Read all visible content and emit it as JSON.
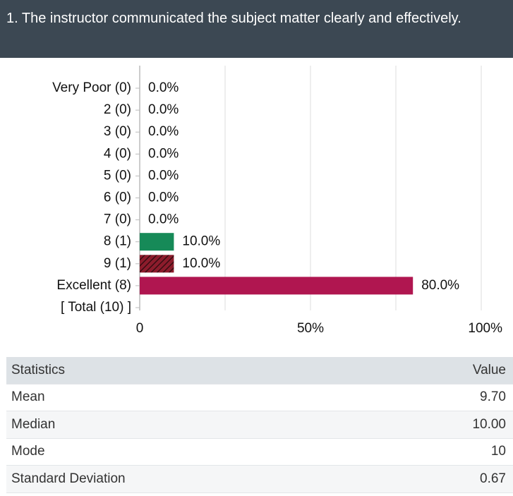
{
  "header": {
    "title": "1. The instructor communicated the subject matter clearly and effectively."
  },
  "chart_data": {
    "type": "hbar",
    "categories": [
      "Very Poor (0)",
      "2 (0)",
      "3 (0)",
      "4 (0)",
      "5 (0)",
      "6 (0)",
      "7 (0)",
      "8 (1)",
      "9 (1)",
      "Excellent (8)",
      "[ Total (10) ]"
    ],
    "values": [
      0,
      0,
      0,
      0,
      0,
      0,
      0,
      10,
      10,
      80,
      null
    ],
    "value_labels": [
      "0.0%",
      "0.0%",
      "0.0%",
      "0.0%",
      "0.0%",
      "0.0%",
      "0.0%",
      "10.0%",
      "10.0%",
      "80.0%",
      null
    ],
    "colors": [
      null,
      null,
      null,
      null,
      null,
      null,
      null,
      "#168a58",
      "#8c1c2c",
      "#b01650",
      null
    ],
    "patterns": [
      null,
      null,
      null,
      null,
      null,
      null,
      null,
      "solid",
      "hatch",
      "solid",
      null
    ],
    "xlim": [
      0,
      100
    ],
    "xticks": [
      0,
      {
        "value": 50,
        "label": "50%"
      },
      {
        "value": 100,
        "label": "100%"
      }
    ],
    "minor_grid": [
      25,
      75
    ],
    "grid": true
  },
  "table": {
    "columns": [
      "Statistics",
      "Value"
    ],
    "rows": [
      [
        "Mean",
        "9.70"
      ],
      [
        "Median",
        "10.00"
      ],
      [
        "Mode",
        "10"
      ],
      [
        "Standard Deviation",
        "0.67"
      ]
    ]
  }
}
